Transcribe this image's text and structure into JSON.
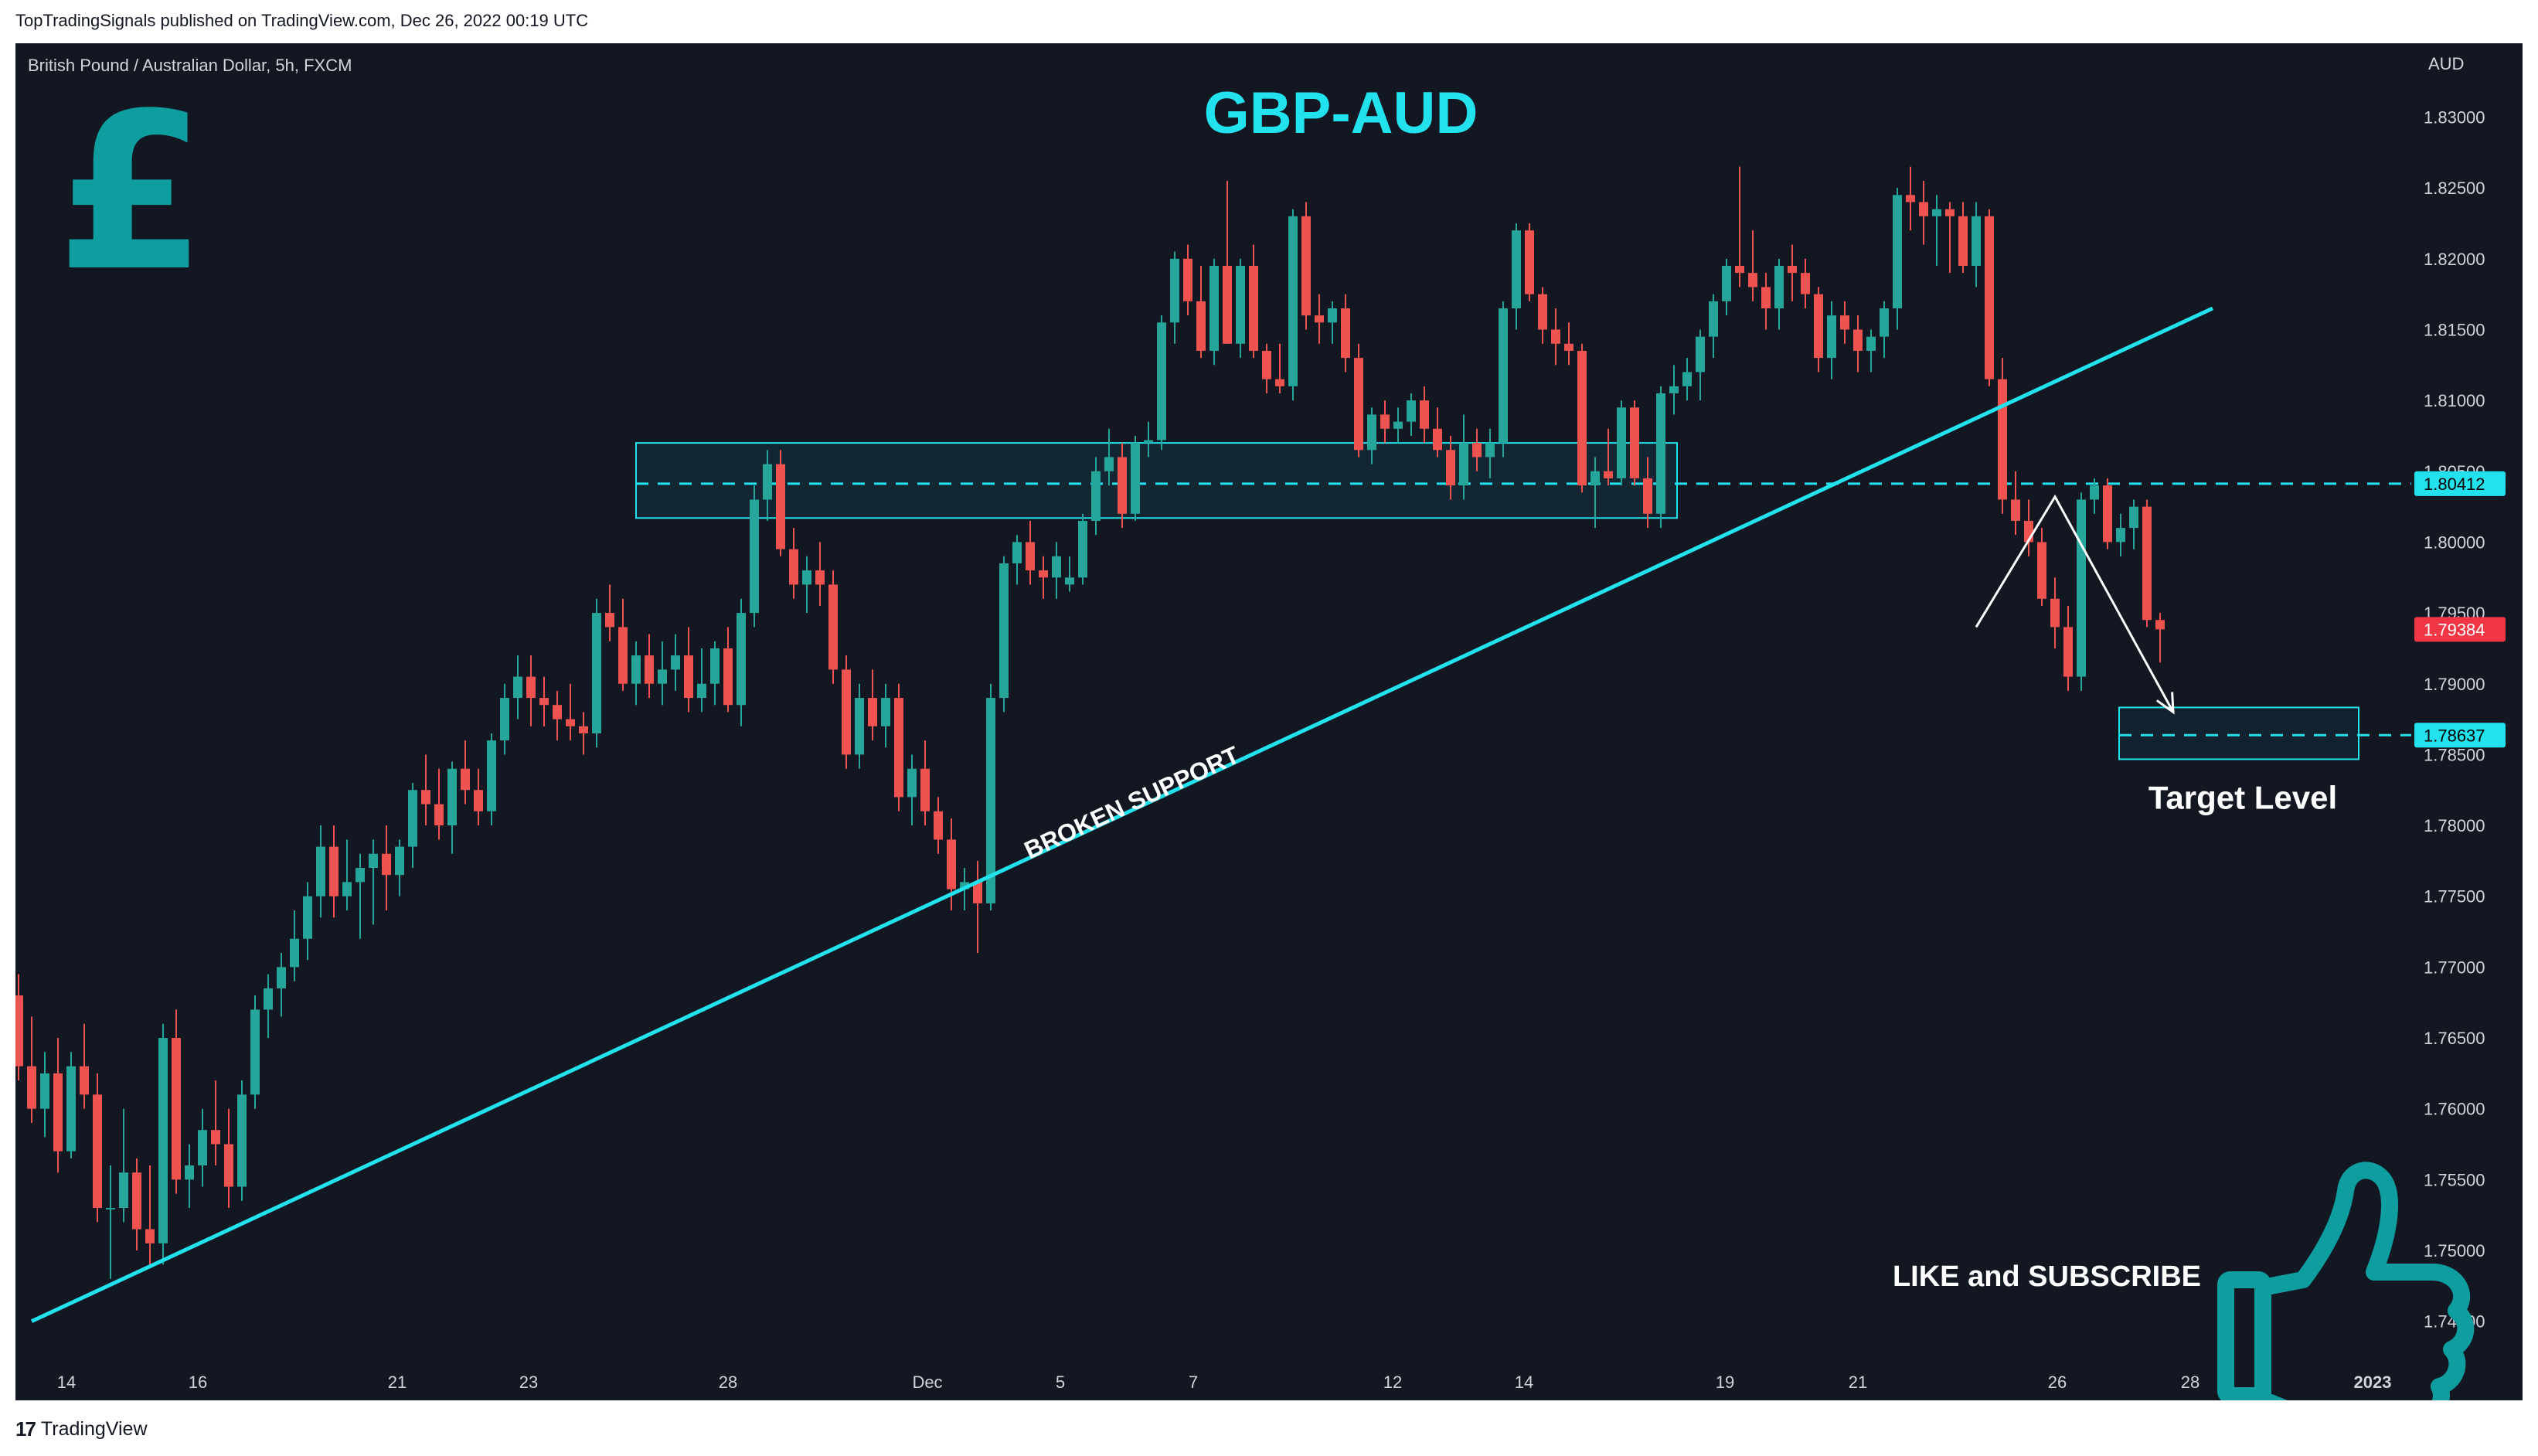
{
  "publish_line": "TopTradingSignals published on TradingView.com, Dec 26, 2022 00:19 UTC",
  "footer_brand": "TradingView",
  "symbol_info": "British Pound / Australian Dollar, 5h, FXCM",
  "currency_label": "AUD",
  "chart_title": "GBP-AUD",
  "pound_icon": "pound-sign-icon",
  "thumbs_icon": "thumbs-up-icon",
  "like_subscribe": "LIKE and SUBSCRIBE",
  "annotations": {
    "broken_support": "BROKEN SUPPORT",
    "target_level": "Target Level"
  },
  "colors": {
    "background": "#121722",
    "bull": "#26a69a",
    "bear": "#ef5350",
    "accent": "#22e2ee",
    "teal_icon": "#0f9ea0",
    "text": "#d1d4dc",
    "price_tag_cyan": "#22e2ee",
    "price_tag_red": "#f23645"
  },
  "chart_data": {
    "type": "candlestick",
    "title": "GBP-AUD",
    "ylim": [
      1.744,
      1.8315
    ],
    "y_ticks": [
      "1.83000",
      "1.82500",
      "1.82000",
      "1.81500",
      "1.81000",
      "1.80500",
      "1.80000",
      "1.79500",
      "1.79000",
      "1.78500",
      "1.78000",
      "1.77500",
      "1.77000",
      "1.76500",
      "1.76000",
      "1.75500",
      "1.75000",
      "1.74500"
    ],
    "x_ticks": [
      "14",
      "16",
      "21",
      "23",
      "28",
      "Dec",
      "5",
      "7",
      "12",
      "14",
      "19",
      "21",
      "26",
      "28",
      "2023"
    ],
    "price_tags": [
      {
        "label": "1.80412",
        "value": 1.80412,
        "style": "cyan"
      },
      {
        "label": "1.79384",
        "value": 1.79384,
        "style": "red"
      },
      {
        "label": "1.78637",
        "value": 1.78637,
        "style": "cyan"
      }
    ],
    "resistance_zone": {
      "low": 1.8017,
      "high": 1.807,
      "mid": 1.80412
    },
    "target_zone": {
      "low": 1.785,
      "high": 1.788,
      "mid": 1.78637
    },
    "trendline": {
      "from": {
        "bar": 1,
        "price": 1.745
      },
      "to": {
        "bar": 167,
        "price": 1.8165
      }
    },
    "projection_path": [
      {
        "bar": 149,
        "price": 1.794
      },
      {
        "bar": 155,
        "price": 1.8032
      },
      {
        "bar": 164,
        "price": 1.788
      }
    ],
    "candles": [
      [
        1.768,
        1.7695,
        1.762,
        1.763
      ],
      [
        1.763,
        1.7665,
        1.759,
        1.76
      ],
      [
        1.76,
        1.764,
        1.758,
        1.7625
      ],
      [
        1.7625,
        1.765,
        1.7555,
        1.757
      ],
      [
        1.757,
        1.764,
        1.7565,
        1.763
      ],
      [
        1.763,
        1.766,
        1.76,
        1.761
      ],
      [
        1.761,
        1.7625,
        1.752,
        1.753
      ],
      [
        1.753,
        1.756,
        1.748,
        1.753
      ],
      [
        1.753,
        1.76,
        1.752,
        1.7555
      ],
      [
        1.7555,
        1.7565,
        1.75,
        1.7515
      ],
      [
        1.7515,
        1.756,
        1.749,
        1.7505
      ],
      [
        1.7505,
        1.766,
        1.749,
        1.765
      ],
      [
        1.765,
        1.767,
        1.754,
        1.755
      ],
      [
        1.755,
        1.7575,
        1.753,
        1.756
      ],
      [
        1.756,
        1.76,
        1.7545,
        1.7585
      ],
      [
        1.7585,
        1.762,
        1.756,
        1.7575
      ],
      [
        1.7575,
        1.76,
        1.753,
        1.7545
      ],
      [
        1.7545,
        1.762,
        1.7535,
        1.761
      ],
      [
        1.761,
        1.768,
        1.76,
        1.767
      ],
      [
        1.767,
        1.7695,
        1.765,
        1.7685
      ],
      [
        1.7685,
        1.771,
        1.7665,
        1.77
      ],
      [
        1.77,
        1.774,
        1.769,
        1.772
      ],
      [
        1.772,
        1.776,
        1.7705,
        1.775
      ],
      [
        1.775,
        1.78,
        1.7735,
        1.7785
      ],
      [
        1.7785,
        1.78,
        1.7735,
        1.775
      ],
      [
        1.775,
        1.779,
        1.774,
        1.776
      ],
      [
        1.776,
        1.778,
        1.772,
        1.777
      ],
      [
        1.777,
        1.779,
        1.773,
        1.778
      ],
      [
        1.778,
        1.78,
        1.774,
        1.7765
      ],
      [
        1.7765,
        1.779,
        1.775,
        1.7785
      ],
      [
        1.7785,
        1.783,
        1.777,
        1.7825
      ],
      [
        1.7825,
        1.785,
        1.78,
        1.7815
      ],
      [
        1.7815,
        1.784,
        1.779,
        1.78
      ],
      [
        1.78,
        1.7845,
        1.778,
        1.784
      ],
      [
        1.784,
        1.786,
        1.7815,
        1.7825
      ],
      [
        1.7825,
        1.784,
        1.78,
        1.781
      ],
      [
        1.781,
        1.7865,
        1.78,
        1.786
      ],
      [
        1.786,
        1.79,
        1.785,
        1.789
      ],
      [
        1.789,
        1.792,
        1.7875,
        1.7905
      ],
      [
        1.7905,
        1.792,
        1.787,
        1.789
      ],
      [
        1.789,
        1.7905,
        1.787,
        1.7885
      ],
      [
        1.7885,
        1.7895,
        1.786,
        1.7875
      ],
      [
        1.7875,
        1.79,
        1.786,
        1.787
      ],
      [
        1.787,
        1.788,
        1.785,
        1.7865
      ],
      [
        1.7865,
        1.796,
        1.7855,
        1.795
      ],
      [
        1.795,
        1.797,
        1.793,
        1.794
      ],
      [
        1.794,
        1.796,
        1.7895,
        1.79
      ],
      [
        1.79,
        1.793,
        1.7885,
        1.792
      ],
      [
        1.792,
        1.7935,
        1.789,
        1.79
      ],
      [
        1.79,
        1.793,
        1.7885,
        1.791
      ],
      [
        1.791,
        1.7935,
        1.7895,
        1.792
      ],
      [
        1.792,
        1.794,
        1.788,
        1.789
      ],
      [
        1.789,
        1.7925,
        1.788,
        1.79
      ],
      [
        1.79,
        1.793,
        1.7885,
        1.7925
      ],
      [
        1.7925,
        1.794,
        1.788,
        1.7885
      ],
      [
        1.7885,
        1.796,
        1.787,
        1.795
      ],
      [
        1.795,
        1.804,
        1.794,
        1.803
      ],
      [
        1.803,
        1.8065,
        1.8015,
        1.8055
      ],
      [
        1.8055,
        1.8065,
        1.799,
        1.7995
      ],
      [
        1.7995,
        1.801,
        1.796,
        1.797
      ],
      [
        1.797,
        1.799,
        1.795,
        1.798
      ],
      [
        1.798,
        1.8,
        1.7955,
        1.797
      ],
      [
        1.797,
        1.798,
        1.79,
        1.791
      ],
      [
        1.791,
        1.792,
        1.784,
        1.785
      ],
      [
        1.785,
        1.79,
        1.784,
        1.789
      ],
      [
        1.789,
        1.791,
        1.786,
        1.787
      ],
      [
        1.787,
        1.79,
        1.7855,
        1.789
      ],
      [
        1.789,
        1.79,
        1.781,
        1.782
      ],
      [
        1.782,
        1.785,
        1.78,
        1.784
      ],
      [
        1.784,
        1.786,
        1.78,
        1.781
      ],
      [
        1.781,
        1.782,
        1.778,
        1.779
      ],
      [
        1.779,
        1.7805,
        1.774,
        1.7755
      ],
      [
        1.7755,
        1.777,
        1.774,
        1.776
      ],
      [
        1.776,
        1.7775,
        1.771,
        1.7745
      ],
      [
        1.7745,
        1.79,
        1.774,
        1.789
      ],
      [
        1.789,
        1.799,
        1.788,
        1.7985
      ],
      [
        1.7985,
        1.8005,
        1.797,
        1.8
      ],
      [
        1.8,
        1.8015,
        1.797,
        1.798
      ],
      [
        1.798,
        1.799,
        1.796,
        1.7975
      ],
      [
        1.7975,
        1.8,
        1.796,
        1.799
      ],
      [
        1.797,
        1.799,
        1.7965,
        1.7975
      ],
      [
        1.7975,
        1.802,
        1.797,
        1.8015
      ],
      [
        1.8015,
        1.806,
        1.8005,
        1.805
      ],
      [
        1.805,
        1.808,
        1.804,
        1.806
      ],
      [
        1.806,
        1.807,
        1.801,
        1.802
      ],
      [
        1.802,
        1.8075,
        1.8015,
        1.807
      ],
      [
        1.807,
        1.8085,
        1.806,
        1.8072
      ],
      [
        1.8072,
        1.816,
        1.8065,
        1.8155
      ],
      [
        1.8155,
        1.8205,
        1.814,
        1.82
      ],
      [
        1.82,
        1.821,
        1.816,
        1.817
      ],
      [
        1.817,
        1.8195,
        1.813,
        1.8135
      ],
      [
        1.8135,
        1.82,
        1.8125,
        1.8195
      ],
      [
        1.8195,
        1.8255,
        1.814,
        1.814
      ],
      [
        1.814,
        1.82,
        1.813,
        1.8195
      ],
      [
        1.8195,
        1.821,
        1.813,
        1.8135
      ],
      [
        1.8135,
        1.814,
        1.8105,
        1.8115
      ],
      [
        1.8115,
        1.814,
        1.8105,
        1.811
      ],
      [
        1.811,
        1.8235,
        1.81,
        1.823
      ],
      [
        1.823,
        1.824,
        1.815,
        1.816
      ],
      [
        1.816,
        1.8175,
        1.814,
        1.8155
      ],
      [
        1.8155,
        1.817,
        1.814,
        1.8165
      ],
      [
        1.8165,
        1.8175,
        1.812,
        1.813
      ],
      [
        1.813,
        1.814,
        1.806,
        1.8065
      ],
      [
        1.8065,
        1.8095,
        1.8055,
        1.809
      ],
      [
        1.809,
        1.81,
        1.807,
        1.808
      ],
      [
        1.808,
        1.8095,
        1.807,
        1.8085
      ],
      [
        1.8085,
        1.8105,
        1.8075,
        1.81
      ],
      [
        1.81,
        1.811,
        1.807,
        1.808
      ],
      [
        1.808,
        1.8095,
        1.806,
        1.8065
      ],
      [
        1.8065,
        1.8075,
        1.803,
        1.804
      ],
      [
        1.804,
        1.809,
        1.803,
        1.807
      ],
      [
        1.807,
        1.808,
        1.805,
        1.806
      ],
      [
        1.806,
        1.808,
        1.8045,
        1.807
      ],
      [
        1.807,
        1.817,
        1.806,
        1.8165
      ],
      [
        1.8165,
        1.8225,
        1.815,
        1.822
      ],
      [
        1.822,
        1.8225,
        1.817,
        1.8175
      ],
      [
        1.8175,
        1.818,
        1.814,
        1.815
      ],
      [
        1.815,
        1.8165,
        1.8125,
        1.814
      ],
      [
        1.814,
        1.8155,
        1.8125,
        1.8135
      ],
      [
        1.8135,
        1.814,
        1.8035,
        1.804
      ],
      [
        1.804,
        1.806,
        1.801,
        1.805
      ],
      [
        1.805,
        1.808,
        1.804,
        1.8045
      ],
      [
        1.8045,
        1.81,
        1.804,
        1.8095
      ],
      [
        1.8095,
        1.81,
        1.804,
        1.8045
      ],
      [
        1.8045,
        1.806,
        1.801,
        1.802
      ],
      [
        1.802,
        1.811,
        1.801,
        1.8105
      ],
      [
        1.8105,
        1.8125,
        1.809,
        1.811
      ],
      [
        1.811,
        1.813,
        1.81,
        1.812
      ],
      [
        1.812,
        1.815,
        1.81,
        1.8145
      ],
      [
        1.8145,
        1.8175,
        1.813,
        1.817
      ],
      [
        1.817,
        1.82,
        1.816,
        1.8195
      ],
      [
        1.8195,
        1.8265,
        1.818,
        1.819
      ],
      [
        1.819,
        1.822,
        1.817,
        1.818
      ],
      [
        1.818,
        1.819,
        1.815,
        1.8165
      ],
      [
        1.8165,
        1.82,
        1.815,
        1.8195
      ],
      [
        1.8195,
        1.821,
        1.817,
        1.819
      ],
      [
        1.819,
        1.82,
        1.8165,
        1.8175
      ],
      [
        1.8175,
        1.818,
        1.812,
        1.813
      ],
      [
        1.813,
        1.817,
        1.8115,
        1.816
      ],
      [
        1.816,
        1.817,
        1.814,
        1.815
      ],
      [
        1.815,
        1.816,
        1.812,
        1.8135
      ],
      [
        1.8135,
        1.815,
        1.812,
        1.8145
      ],
      [
        1.8145,
        1.817,
        1.813,
        1.8165
      ],
      [
        1.8165,
        1.825,
        1.815,
        1.8245
      ],
      [
        1.8245,
        1.8265,
        1.822,
        1.824
      ],
      [
        1.824,
        1.8255,
        1.821,
        1.823
      ],
      [
        1.823,
        1.8245,
        1.8195,
        1.8235
      ],
      [
        1.8235,
        1.824,
        1.819,
        1.823
      ],
      [
        1.823,
        1.824,
        1.819,
        1.8195
      ],
      [
        1.8195,
        1.824,
        1.818,
        1.823
      ],
      [
        1.823,
        1.8235,
        1.811,
        1.8115
      ],
      [
        1.8115,
        1.813,
        1.802,
        1.803
      ],
      [
        1.803,
        1.805,
        1.8005,
        1.8015
      ],
      [
        1.8015,
        1.803,
        1.799,
        1.8
      ],
      [
        1.8,
        1.801,
        1.7955,
        1.796
      ],
      [
        1.796,
        1.7975,
        1.7925,
        1.794
      ],
      [
        1.794,
        1.7955,
        1.7895,
        1.7905
      ],
      [
        1.7905,
        1.8035,
        1.7895,
        1.803
      ],
      [
        1.803,
        1.8045,
        1.802,
        1.804
      ],
      [
        1.804,
        1.8045,
        1.7995,
        1.8
      ],
      [
        1.8,
        1.802,
        1.799,
        1.801
      ],
      [
        1.801,
        1.803,
        1.7995,
        1.8025
      ],
      [
        1.8025,
        1.803,
        1.794,
        1.7945
      ],
      [
        1.7945,
        1.795,
        1.7915,
        1.79384
      ]
    ]
  }
}
